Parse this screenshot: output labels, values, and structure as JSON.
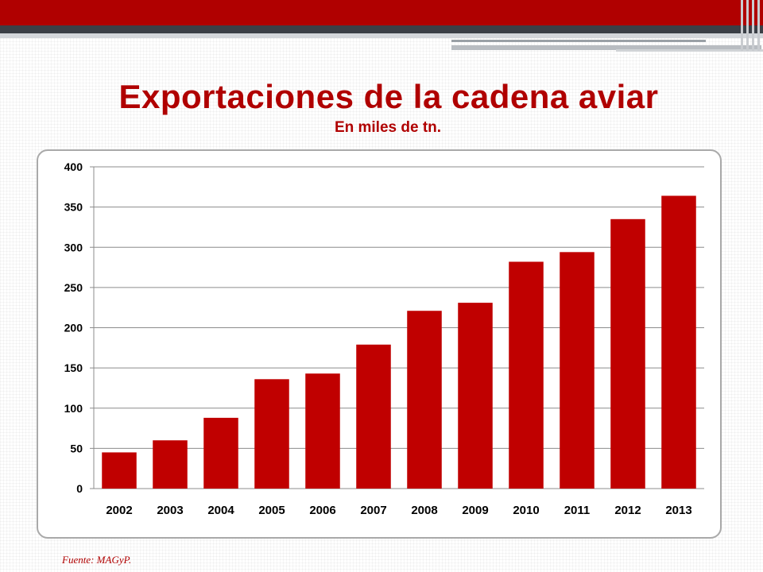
{
  "title": "Exportaciones de la cadena aviar",
  "subtitle": "En miles de tn.",
  "source": "Fuente: MAGyP.",
  "colors": {
    "bar": "#c00000",
    "accent": "#b00000",
    "grid": "#8c8c8c",
    "text": "#000000"
  },
  "chart_data": {
    "type": "bar",
    "title": "",
    "xlabel": "",
    "ylabel": "",
    "categories": [
      "2002",
      "2003",
      "2004",
      "2005",
      "2006",
      "2007",
      "2008",
      "2009",
      "2010",
      "2011",
      "2012",
      "2013"
    ],
    "values": [
      45,
      60,
      88,
      136,
      143,
      179,
      221,
      231,
      282,
      294,
      335,
      364
    ],
    "ylim": [
      0,
      400
    ],
    "yticks": [
      0,
      50,
      100,
      150,
      200,
      250,
      300,
      350,
      400
    ],
    "grid": true,
    "legend": "none"
  }
}
